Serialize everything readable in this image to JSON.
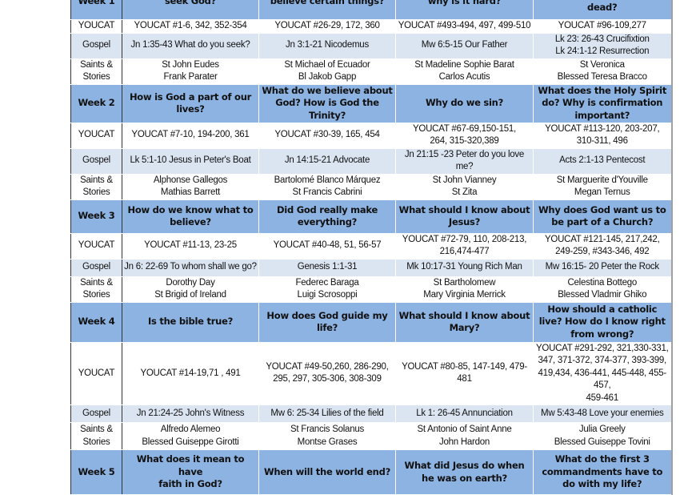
{
  "row_labels": {
    "youcat": "YOUCAT",
    "gospel": "Gospel",
    "saints": "Saints &\nStories"
  },
  "colors": {
    "header": "#8db3e2",
    "gospel_row": "#dbe5f1"
  },
  "weeks": [
    {
      "label": "Week 1",
      "topics": [
        "seek God?",
        "believe certain things?",
        "why is it hard?",
        "cross & rise from the\ndead?"
      ],
      "youcat": [
        "YOUCAT #1-6, 342, 352-354",
        "YOUCAT #26-29, 172, 360",
        "YOUCAT #493-494, 497, 499-510",
        "YOUCAT #96-109,277"
      ],
      "gospel": [
        "Jn 1:35-43 What do you seek?",
        "Jn 3:1-21 Nicodemus",
        "Mw 6:5-15 Our Father",
        "Lk 23: 26-43 Crucifixtion\nLk 24:1-12 Resurrection"
      ],
      "saints": [
        "St John Eudes\nFrank Parater",
        "St Michael of Ecuador\nBl Jakob Gapp",
        "St Madeline Sophie Barat\nCarlos Acutis",
        "St Veronica\nBlessed Teresa Bracco"
      ]
    },
    {
      "label": "Week 2",
      "topics": [
        "How is God a part of our\nlives?",
        "What do we believe about\nGod? How is God the\nTrinity?",
        "Why do we sin?",
        "What does the Holy Spirit\ndo? Why is confirmation\nimportant?"
      ],
      "youcat": [
        "YOUCAT #7-10, 194-200, 361",
        "YOUCAT #30-39, 165, 454",
        "YOUCAT #67-69,150-151,\n264, 315-320,389",
        "YOUCAT #113-120, 203-207,\n310-311, 496"
      ],
      "gospel": [
        "Lk 5:1-10 Jesus in Peter's Boat",
        "Jn 14:15-21 Advocate",
        "Jn 21:15 -23 Peter do you love me?",
        "Acts 2:1-13 Pentecost"
      ],
      "saints": [
        "Alphonse Gallegos\nMathias Barrett",
        "Bartolomé Blanco Márquez\nSt Francis Cabrini",
        "St John Vianney\nSt Zita",
        "St Marguerite d'Youville\nMegan Ternus"
      ]
    },
    {
      "label": "Week 3",
      "topics": [
        "How do we know what to\nbelieve?",
        "Did God really make\neverything?",
        "What should I know about\nJesus?",
        "Why does God want us to\nbe part of a Church?"
      ],
      "youcat": [
        "YOUCAT #11-13, 23-25",
        "YOUCAT #40-48, 51, 56-57",
        "YOUCAT #72-79, 110, 208-213,\n216,474-477",
        "YOUCAT #121-145, 217,242,\n249-259, #343-346, 492"
      ],
      "gospel": [
        "Jn 6: 22-69 To whom shall we go?",
        "Genesis 1:1-31",
        "Mk 10:17-31 Young Rich Man",
        "Mw 16:15- 20 Peter the Rock"
      ],
      "saints": [
        "Dorothy Day\nSt Brigid of Ireland",
        "Federec Baraga\nLuigi Scrosoppi",
        "St Bartholomew\nMary Virginia Merrick",
        "Celestina Bottego\nBlessed Vladmir Ghiko"
      ]
    },
    {
      "label": "Week 4",
      "topics": [
        "Is the bible true?",
        "How does God guide my\nlife?",
        "What should I know about\nMary?",
        "How should a catholic\nlive? How do I know right\nfrom wrong?"
      ],
      "youcat": [
        "YOUCAT #14-19,71 , 491",
        "YOUCAT #49-50,260, 286-290,\n295, 297, 305-306, 308-309",
        "YOUCAT #80-85, 147-149, 479-481",
        "YOUCAT #291-292, 321,330-331,\n347, 371-372, 374-377, 393-399,\n419,434, 436-441, 445-448,  455-457,\n459-461"
      ],
      "gospel": [
        "Jn 21:24-25 John's Witness",
        "Mw 6: 25-34 Lilies of the field",
        "Lk 1: 26-45 Annunciation",
        "Mw 5:43-48 Love your enemies"
      ],
      "saints": [
        "Alfredo Alemeo\nBlessed Guiseppe Girotti",
        "St Francis Solanus\nMontse Grases",
        "St Antonio of Saint Anne\nJohn Hardon",
        "Julia Greely\nBlessed Guiseppe Tovini"
      ]
    },
    {
      "label": "Week 5",
      "topics": [
        "What does it mean to have\nfaith in God?",
        "When will the world end?",
        "What did Jesus do when\nhe was on earth?",
        "What do the first 3\ncommandments have to\ndo with my life?"
      ]
    }
  ]
}
